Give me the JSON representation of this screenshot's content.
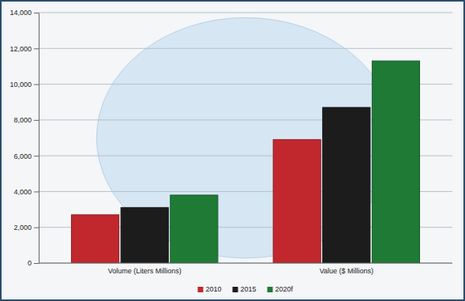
{
  "chart_data": {
    "type": "bar",
    "categories": [
      "Volume (Liters Millions)",
      "Value ($ Millions)"
    ],
    "series": [
      {
        "name": "2010",
        "color": "#c0282d",
        "values": [
          2700,
          6900
        ]
      },
      {
        "name": "2015",
        "color": "#1c1c1c",
        "values": [
          3100,
          8700
        ]
      },
      {
        "name": "2020f",
        "color": "#1f7a36",
        "values": [
          3800,
          11300
        ]
      }
    ],
    "ylim": [
      0,
      14000
    ],
    "yticks": [
      0,
      {
        "value": 2000,
        "label": "2,000"
      },
      {
        "value": 4000,
        "label": "4,000"
      },
      {
        "value": 6000,
        "label": "6,000"
      },
      {
        "value": 8000,
        "label": "8,000"
      },
      {
        "value": 10000,
        "label": "10,000"
      },
      {
        "value": 12000,
        "label": "12,000"
      },
      {
        "value": 14000,
        "label": "14,000"
      }
    ],
    "grid": true,
    "legend": "bottom"
  }
}
